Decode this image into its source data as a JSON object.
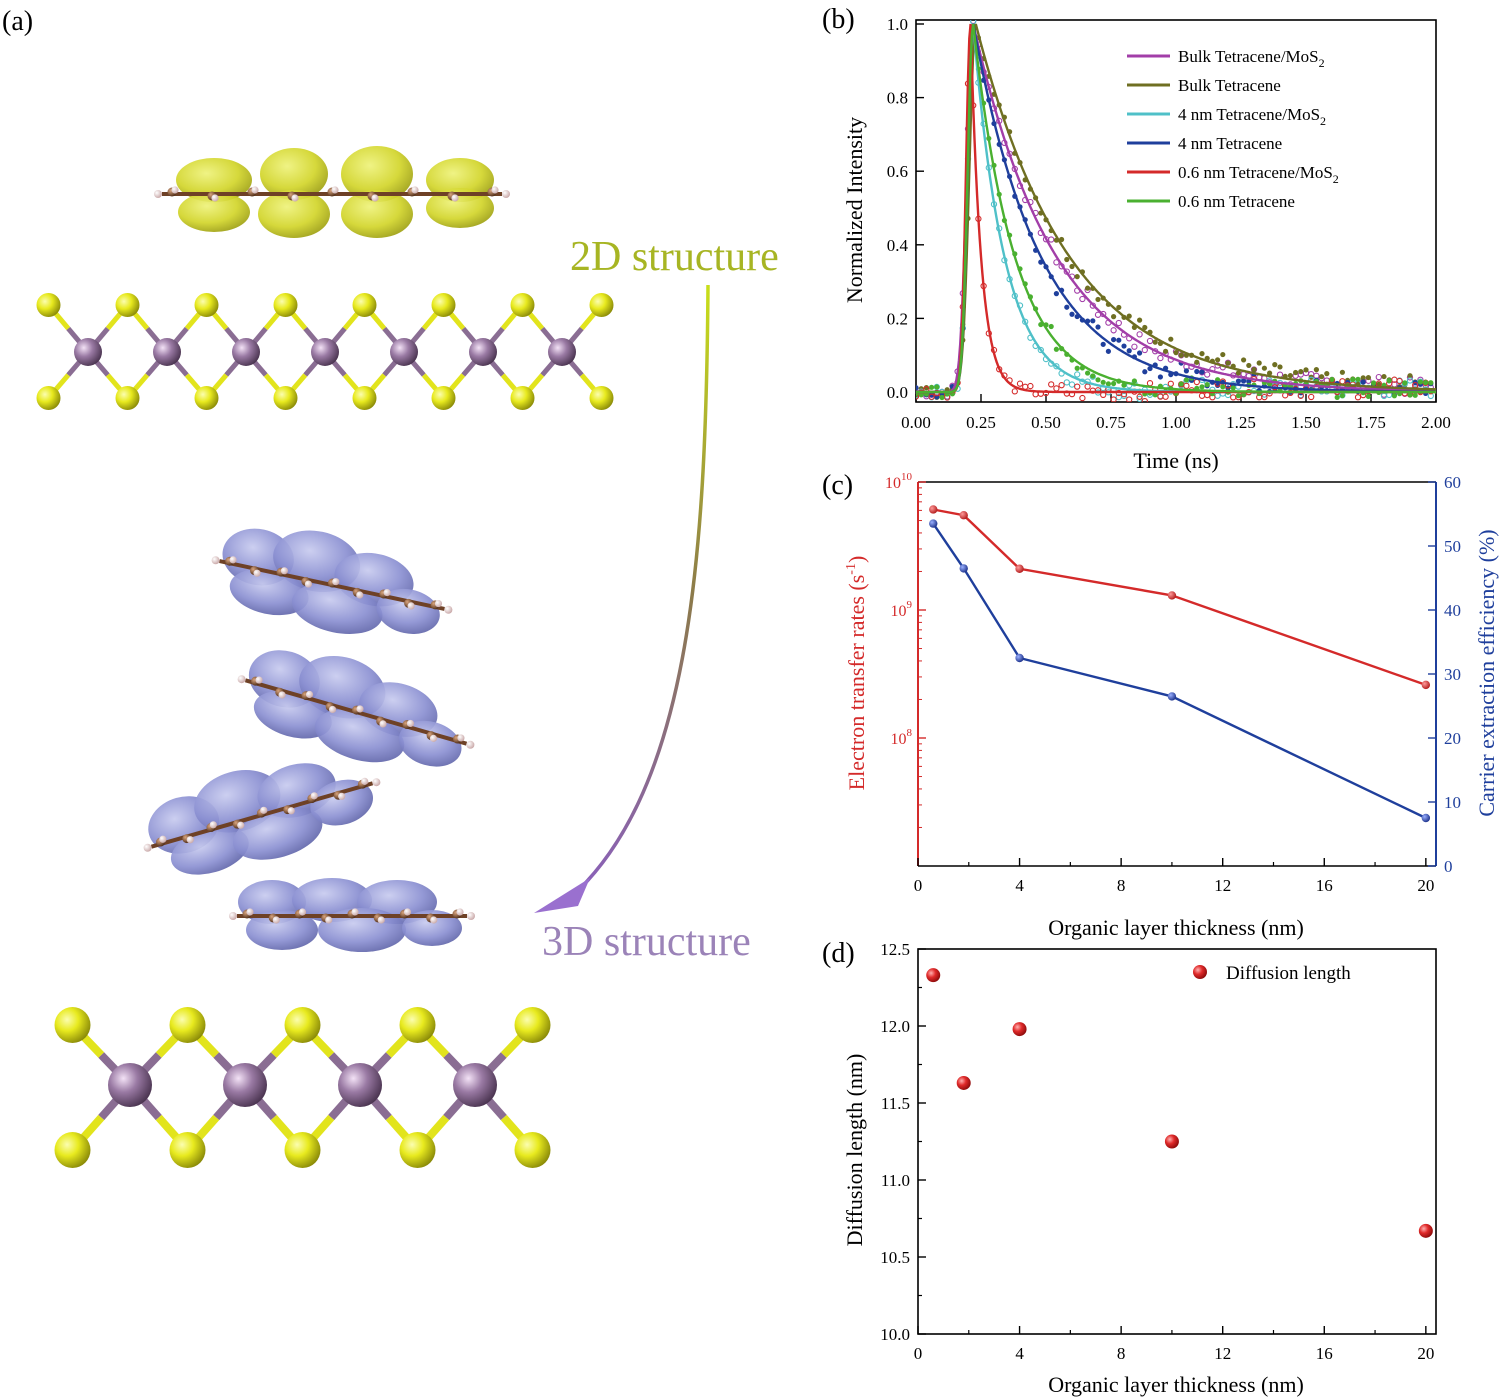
{
  "figure": {
    "panel_labels": {
      "a": "(a)",
      "b": "(b)",
      "c": "(c)",
      "d": "(d)"
    }
  },
  "panel_a": {
    "label_2d": "2D structure",
    "label_3d": "3D structure",
    "colors": {
      "orbital_yellow": "#d4d62a",
      "orbital_blue": "#8a90d4",
      "sulfur": "#e6e81c",
      "molybdenum": "#8a6d93",
      "carbon": "#7a4a2c",
      "hydrogen": "#f0d8d8",
      "label_2d": "#a7b523",
      "label_3d": "#9b83b8"
    }
  },
  "chart_data": [
    {
      "id": "b",
      "type": "line",
      "xlabel": "Time (ns)",
      "ylabel": "Normalized Intensity",
      "xlim": [
        0,
        2.0
      ],
      "ylim": [
        -0.03,
        1.0
      ],
      "xticks": [
        "0.00",
        "0.25",
        "0.50",
        "0.75",
        "1.00",
        "1.25",
        "1.50",
        "1.75",
        "2.00"
      ],
      "yticks": [
        "0.0",
        "0.2",
        "0.4",
        "0.6",
        "0.8",
        "1.0"
      ],
      "legend_position": "top-right",
      "series": [
        {
          "name": "Bulk Tetracene/MoS",
          "sub": "2",
          "color": "#a23ea8",
          "peak": 0.22,
          "width": 0.035,
          "tau": 0.32,
          "markers": "open"
        },
        {
          "name": "Bulk Tetracene",
          "sub": "",
          "color": "#6f6f22",
          "peak": 0.23,
          "width": 0.035,
          "tau": 0.36,
          "markers": "filled"
        },
        {
          "name": "4 nm Tetracene/MoS",
          "sub": "2",
          "color": "#4fc0c8",
          "peak": 0.22,
          "width": 0.03,
          "tau": 0.12,
          "markers": "open"
        },
        {
          "name": "4 nm Tetracene",
          "sub": "",
          "color": "#1f3f9c",
          "peak": 0.22,
          "width": 0.03,
          "tau": 0.26,
          "markers": "filled"
        },
        {
          "name": "0.6 nm Tetracene/MoS",
          "sub": "2",
          "color": "#d42a2a",
          "peak": 0.21,
          "width": 0.025,
          "tau": 0.04,
          "markers": "open"
        },
        {
          "name": "0.6 nm Tetracene",
          "sub": "",
          "color": "#4ab030",
          "peak": 0.22,
          "width": 0.03,
          "tau": 0.16,
          "markers": "filled"
        }
      ]
    },
    {
      "id": "c",
      "type": "line",
      "xlabel": "Organic layer thickness (nm)",
      "ylabel_left": "Electron transfer rates (s",
      "ylabel_left_sup": "-1",
      "ylabel_left_end": ")",
      "ylabel_right": "Carrier extraction efficiency (%)",
      "xlim": [
        0,
        20.4
      ],
      "xticks": [
        0,
        4,
        8,
        12,
        16,
        20
      ],
      "ylim_left_log": [
        7,
        10
      ],
      "yticks_left": [
        {
          "base": "10",
          "exp": "8",
          "v": 8
        },
        {
          "base": "10",
          "exp": "9",
          "v": 9
        },
        {
          "base": "10",
          "exp": "10",
          "v": 10
        }
      ],
      "ylim_right": [
        0,
        60
      ],
      "yticks_right": [
        0,
        10,
        20,
        30,
        40,
        50,
        60
      ],
      "color_left": "#d42a2a",
      "color_right": "#1f3f9c",
      "x": [
        0.6,
        1.8,
        4,
        10,
        20
      ],
      "series": [
        {
          "name": "Electron transfer rates",
          "axis": "left",
          "values": [
            6100000000.0,
            5500000000.0,
            2100000000.0,
            1300000000.0,
            260000000.0
          ]
        },
        {
          "name": "Carrier extraction efficiency",
          "axis": "right",
          "values": [
            53.5,
            46.5,
            32.5,
            26.5,
            7.5
          ]
        }
      ]
    },
    {
      "id": "d",
      "type": "scatter",
      "xlabel": "Organic layer thickness (nm)",
      "ylabel": "Diffusion length (nm)",
      "xlim": [
        0,
        20.4
      ],
      "ylim": [
        10.0,
        12.5
      ],
      "xticks": [
        0,
        4,
        8,
        12,
        16,
        20
      ],
      "yticks": [
        "10.0",
        "10.5",
        "11.0",
        "11.5",
        "12.0",
        "12.5"
      ],
      "legend": "Diffusion length",
      "color": "#d42a2a",
      "x": [
        0.6,
        1.8,
        4,
        10,
        20
      ],
      "values": [
        12.33,
        11.63,
        11.98,
        11.25,
        10.67
      ]
    }
  ]
}
